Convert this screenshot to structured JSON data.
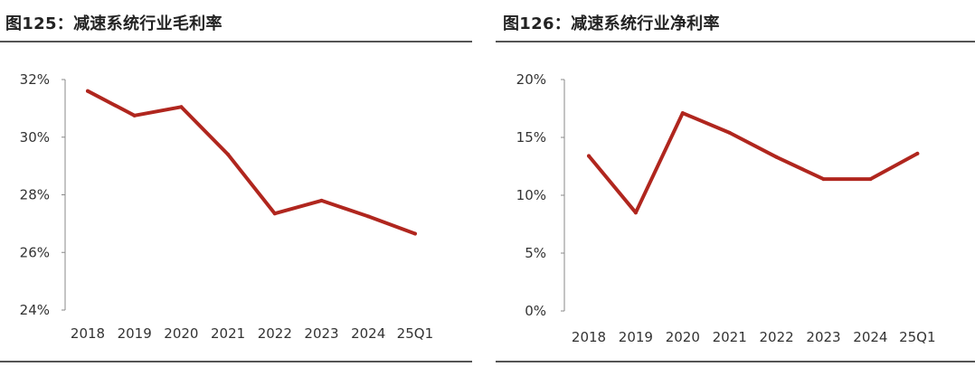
{
  "figures": [
    {
      "title": "图125：减速系统行业毛利率"
    },
    {
      "title": "图126：减速系统行业净利率"
    }
  ],
  "chart_data": [
    {
      "type": "line",
      "title": "图125：减速系统行业毛利率",
      "categories": [
        "2018",
        "2019",
        "2020",
        "2021",
        "2022",
        "2023",
        "2024",
        "25Q1"
      ],
      "series": [
        {
          "values": [
            31.6,
            30.75,
            31.05,
            29.4,
            27.35,
            27.8,
            27.25,
            26.65
          ],
          "color": "#b0261e"
        }
      ],
      "ylim": [
        24,
        32
      ],
      "yticks": [
        24,
        26,
        28,
        30,
        32
      ],
      "ytick_labels": [
        "24%",
        "26%",
        "28%",
        "30%",
        "32%"
      ],
      "grid": false,
      "legend": "none"
    },
    {
      "type": "line",
      "title": "图126：减速系统行业净利率",
      "categories": [
        "2018",
        "2019",
        "2020",
        "2021",
        "2022",
        "2023",
        "2024",
        "25Q1"
      ],
      "series": [
        {
          "values": [
            13.4,
            8.5,
            17.1,
            15.4,
            13.3,
            11.4,
            11.4,
            13.6
          ],
          "color": "#b0261e"
        }
      ],
      "ylim": [
        0,
        20
      ],
      "yticks": [
        0,
        5,
        10,
        15,
        20
      ],
      "ytick_labels": [
        "0%",
        "5%",
        "10%",
        "15%",
        "20%"
      ],
      "grid": false,
      "legend": "none"
    }
  ]
}
